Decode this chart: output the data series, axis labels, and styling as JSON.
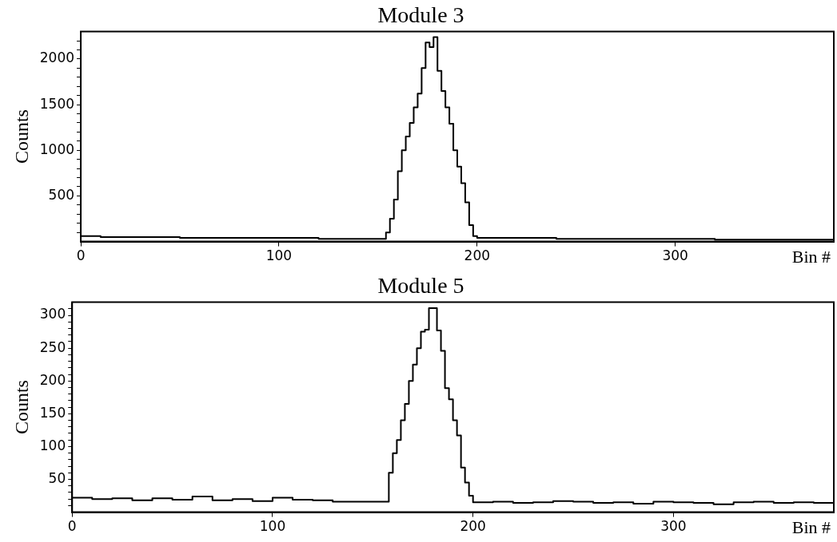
{
  "chart_data": [
    {
      "type": "histogram",
      "title": "Module 3",
      "xlabel": "Bin #",
      "ylabel": "Counts",
      "color": "#000000",
      "bins": [
        0,
        10,
        20,
        30,
        40,
        50,
        60,
        70,
        80,
        90,
        100,
        110,
        120,
        130,
        140,
        150,
        154,
        156,
        158,
        160,
        162,
        164,
        166,
        168,
        170,
        172,
        174,
        176,
        178,
        180,
        182,
        184,
        186,
        188,
        190,
        192,
        194,
        196,
        198,
        200,
        210,
        220,
        230,
        240,
        250,
        260,
        270,
        280,
        290,
        300,
        310,
        320,
        330,
        340,
        350,
        360,
        370,
        380
      ],
      "values": [
        60,
        50,
        50,
        50,
        50,
        40,
        40,
        40,
        40,
        40,
        40,
        40,
        30,
        30,
        30,
        30,
        100,
        250,
        460,
        770,
        1000,
        1150,
        1300,
        1470,
        1620,
        1900,
        2180,
        2130,
        2240,
        1870,
        1650,
        1470,
        1290,
        1000,
        820,
        640,
        430,
        180,
        60,
        40,
        40,
        40,
        40,
        30,
        30,
        30,
        30,
        30,
        30,
        30,
        30,
        20,
        20,
        20,
        20,
        20,
        20
      ],
      "xlim": [
        0,
        380
      ],
      "xticks": [
        0,
        100,
        200,
        300
      ],
      "ylim": [
        0,
        2300
      ],
      "yticks": [
        {
          "value": 100,
          "label": null
        },
        {
          "value": 200,
          "label": null
        },
        {
          "value": 300,
          "label": null
        },
        {
          "value": 400,
          "label": null
        },
        500,
        {
          "value": 600,
          "label": null
        },
        {
          "value": 700,
          "label": null
        },
        {
          "value": 800,
          "label": null
        },
        {
          "value": 900,
          "label": null
        },
        1000,
        {
          "value": 1100,
          "label": null
        },
        {
          "value": 1200,
          "label": null
        },
        {
          "value": 1300,
          "label": null
        },
        {
          "value": 1400,
          "label": null
        },
        1500,
        {
          "value": 1600,
          "label": null
        },
        {
          "value": 1700,
          "label": null
        },
        {
          "value": 1800,
          "label": null
        },
        {
          "value": 1900,
          "label": null
        },
        2000,
        {
          "value": 2100,
          "label": null
        },
        {
          "value": 2200,
          "label": null
        }
      ]
    },
    {
      "type": "histogram",
      "title": "Module 5",
      "xlabel": "Bin #",
      "ylabel": "Counts",
      "color": "#000000",
      "bins": [
        0,
        10,
        20,
        30,
        40,
        50,
        60,
        70,
        80,
        90,
        100,
        110,
        120,
        130,
        140,
        150,
        158,
        160,
        162,
        164,
        166,
        168,
        170,
        172,
        174,
        176,
        178,
        180,
        182,
        184,
        186,
        188,
        190,
        192,
        194,
        196,
        198,
        200,
        210,
        220,
        230,
        240,
        250,
        260,
        270,
        280,
        290,
        300,
        310,
        320,
        330,
        340,
        350,
        360,
        370,
        380
      ],
      "values": [
        22,
        20,
        21,
        18,
        21,
        19,
        24,
        18,
        20,
        17,
        22,
        19,
        18,
        16,
        16,
        16,
        60,
        90,
        110,
        140,
        165,
        200,
        225,
        250,
        275,
        278,
        311,
        311,
        277,
        246,
        189,
        172,
        140,
        117,
        68,
        45,
        25,
        15,
        16,
        14,
        15,
        17,
        16,
        14,
        15,
        13,
        16,
        15,
        14,
        12,
        15,
        16,
        14,
        15,
        14
      ],
      "xlim": [
        0,
        380
      ],
      "xticks": [
        0,
        100,
        200,
        300
      ],
      "ylim": [
        0,
        320
      ],
      "yticks": [
        {
          "value": 10,
          "label": null
        },
        {
          "value": 20,
          "label": null
        },
        {
          "value": 30,
          "label": null
        },
        {
          "value": 40,
          "label": null
        },
        50,
        {
          "value": 60,
          "label": null
        },
        {
          "value": 70,
          "label": null
        },
        {
          "value": 80,
          "label": null
        },
        {
          "value": 90,
          "label": null
        },
        100,
        {
          "value": 110,
          "label": null
        },
        {
          "value": 120,
          "label": null
        },
        {
          "value": 130,
          "label": null
        },
        {
          "value": 140,
          "label": null
        },
        150,
        {
          "value": 160,
          "label": null
        },
        {
          "value": 170,
          "label": null
        },
        {
          "value": 180,
          "label": null
        },
        {
          "value": 190,
          "label": null
        },
        200,
        {
          "value": 210,
          "label": null
        },
        {
          "value": 220,
          "label": null
        },
        {
          "value": 230,
          "label": null
        },
        {
          "value": 240,
          "label": null
        },
        250,
        {
          "value": 260,
          "label": null
        },
        {
          "value": 270,
          "label": null
        },
        {
          "value": 280,
          "label": null
        },
        {
          "value": 290,
          "label": null
        },
        300,
        {
          "value": 310,
          "label": null
        }
      ]
    }
  ]
}
